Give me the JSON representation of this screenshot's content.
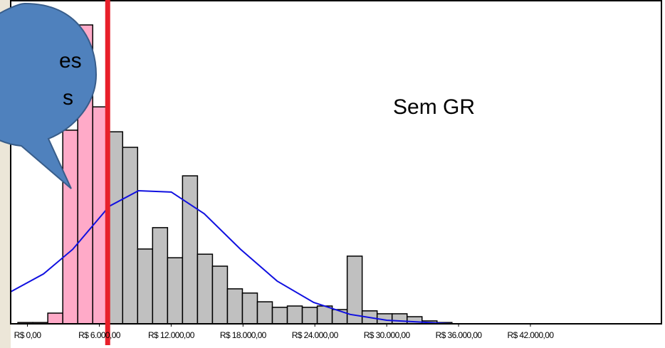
{
  "chart_data": {
    "type": "histogram",
    "annotation": "Sem GR",
    "callout_text": [
      "es",
      "s"
    ],
    "bins": [
      -800,
      450,
      1700,
      2950,
      4200,
      5450,
      6700,
      7950,
      9200,
      10450,
      11700,
      12950,
      14200,
      15450,
      16700,
      17950,
      19200,
      20450,
      21700,
      22950,
      24200,
      25450,
      26700,
      27950,
      29200,
      30450,
      31700,
      32950,
      34200,
      35450
    ],
    "values": [
      0.4,
      0.4,
      3.3,
      59.8,
      92.3,
      67,
      59.3,
      54.5,
      23.1,
      29.7,
      20.4,
      45.7,
      21.5,
      17.8,
      10.8,
      9.5,
      6.8,
      5.1,
      5.5,
      5.1,
      5.5,
      4.4,
      20.9,
      4.0,
      3.1,
      3.1,
      2.2,
      0.9,
      0.4
    ],
    "color_below": "#ffaac8",
    "color_above": "#c0c0c0",
    "cutoff": 6700,
    "cutoff_color": "#e8202a",
    "curve": {
      "color": "#1010e0",
      "x": [
        -1400,
        1340,
        3780,
        6830,
        9270,
        12010,
        14760,
        17800,
        20850,
        23900,
        26950,
        30000,
        35490
      ],
      "y": [
        9.9,
        15.4,
        23,
        36.3,
        41.1,
        40.7,
        34,
        23,
        13.2,
        6.6,
        2.9,
        1.1,
        0
      ]
    },
    "xlim": [
      -1400,
      53000
    ],
    "ylim": [
      0,
      100
    ],
    "xticks": [
      {
        "value": 0,
        "label": "R$ 0,00"
      },
      {
        "value": 6000,
        "label": "R$ 6.000,00"
      },
      {
        "value": 12000,
        "label": "R$ 12.000,00"
      },
      {
        "value": 18000,
        "label": "R$ 18.000,00"
      },
      {
        "value": 24000,
        "label": "R$ 24.000,00"
      },
      {
        "value": 30000,
        "label": "R$ 30.000,00"
      },
      {
        "value": 36000,
        "label": "R$ 36.000,00"
      },
      {
        "value": 42000,
        "label": "R$ 42.000,00"
      }
    ]
  }
}
